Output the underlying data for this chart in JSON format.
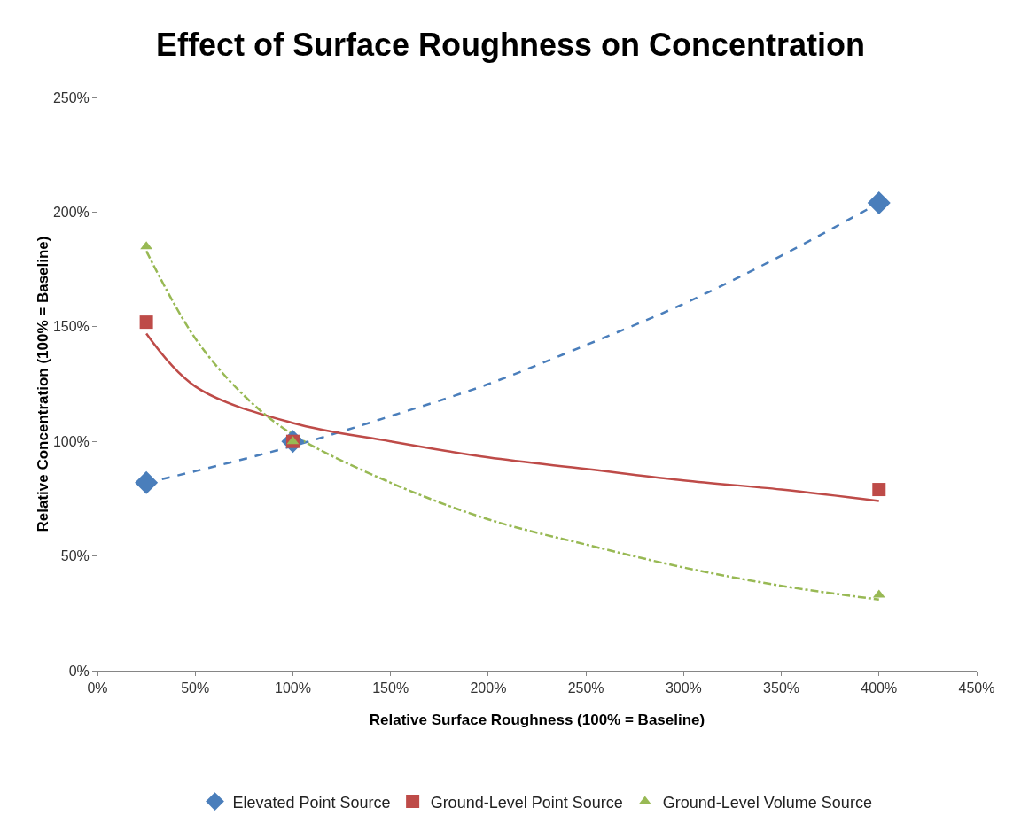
{
  "chart_data": {
    "type": "scatter",
    "title": "Effect of Surface Roughness on Concentration",
    "xlabel": "Relative Surface Roughness (100% = Baseline)",
    "ylabel": "Relative Concentration (100% = Baseline)",
    "x": [
      25,
      100,
      400
    ],
    "series": [
      {
        "name": "Elevated Point Source",
        "color": "#4a7ebb",
        "marker": "diamond",
        "values": [
          82,
          100,
          204
        ]
      },
      {
        "name": "Ground-Level Point Source",
        "color": "#be4b48",
        "marker": "square",
        "values": [
          152,
          100,
          79
        ]
      },
      {
        "name": "Ground-Level Volume Source",
        "color": "#98b954",
        "marker": "triangle",
        "values": [
          185,
          100,
          33
        ]
      },
      {
        "type": "line",
        "color": "#4a7ebb",
        "marker": "none",
        "line_style": "dashed",
        "x": [
          25,
          50,
          100,
          150,
          200,
          250,
          300,
          350,
          400
        ],
        "values": [
          82,
          87,
          98,
          111,
          125,
          142,
          160,
          181,
          204
        ]
      },
      {
        "type": "line",
        "color": "#be4b48",
        "marker": "none",
        "line_style": "solid",
        "x": [
          25,
          50,
          100,
          150,
          200,
          250,
          300,
          350,
          400
        ],
        "values": [
          147,
          124,
          108,
          100,
          93,
          88,
          83,
          79,
          74
        ]
      },
      {
        "type": "line",
        "color": "#98b954",
        "marker": "none",
        "line_style": "dashdot",
        "x": [
          25,
          50,
          75,
          100,
          150,
          200,
          250,
          300,
          350,
          400
        ],
        "values": [
          183,
          145,
          120,
          103,
          82,
          66,
          55,
          45,
          37,
          31
        ]
      }
    ],
    "xlim": [
      0,
      450
    ],
    "xticks": [
      {
        "value": 0,
        "label": "0%"
      },
      {
        "value": 50,
        "label": "50%"
      },
      {
        "value": 100,
        "label": "100%"
      },
      {
        "value": 150,
        "label": "150%"
      },
      {
        "value": 200,
        "label": "200%"
      },
      {
        "value": 250,
        "label": "250%"
      },
      {
        "value": 300,
        "label": "300%"
      },
      {
        "value": 350,
        "label": "350%"
      },
      {
        "value": 400,
        "label": "400%"
      },
      {
        "value": 450,
        "label": "450%"
      }
    ],
    "ylim": [
      0,
      250
    ],
    "yticks": [
      {
        "value": 0,
        "label": "0%"
      },
      {
        "value": 50,
        "label": "50%"
      },
      {
        "value": 100,
        "label": "100%"
      },
      {
        "value": 150,
        "label": "150%"
      },
      {
        "value": 200,
        "label": "200%"
      },
      {
        "value": 250,
        "label": "250%"
      }
    ],
    "grid": false,
    "legend": "bottom"
  }
}
